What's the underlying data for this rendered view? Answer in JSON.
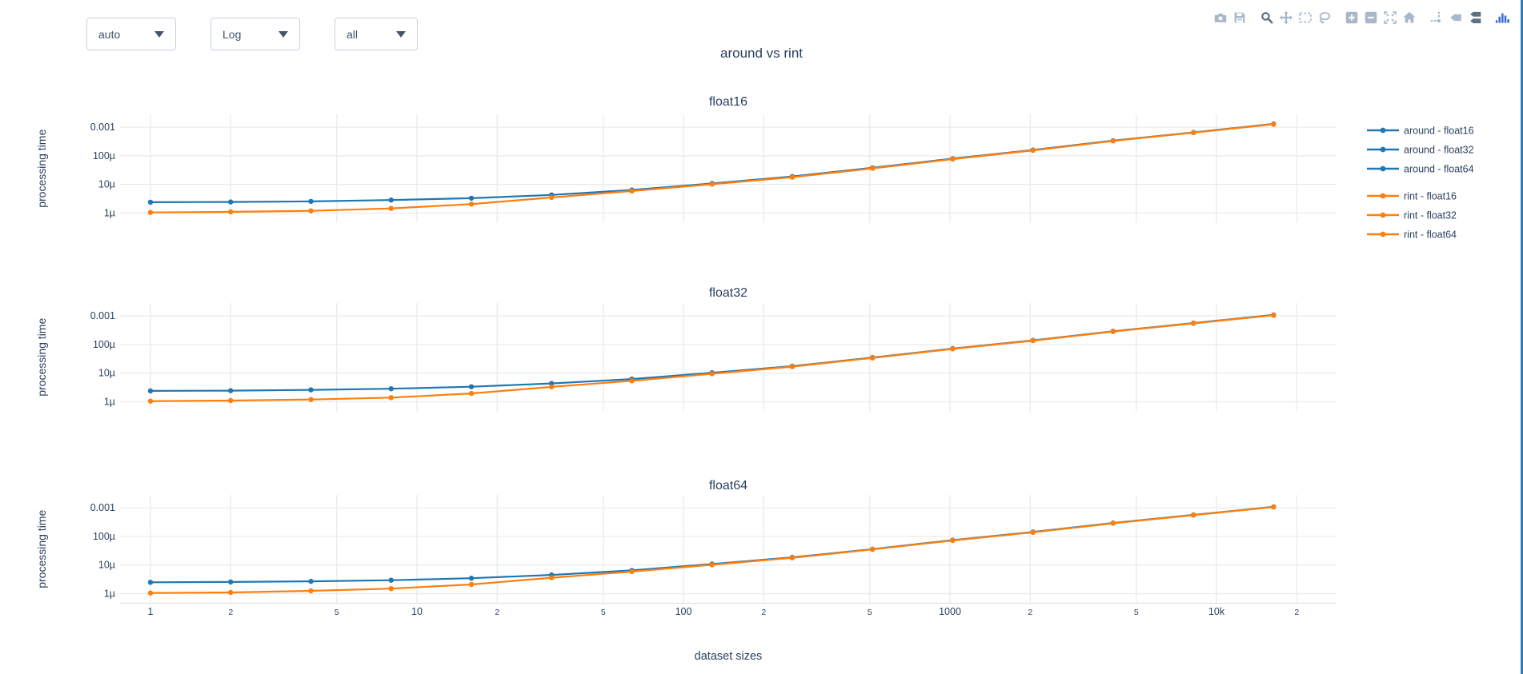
{
  "title": "around vs rint",
  "window": {
    "right_border_color": "#2b7dbe"
  },
  "controls": {
    "dropdowns": [
      {
        "label": "auto"
      },
      {
        "label": "Log"
      },
      {
        "label": "all"
      }
    ]
  },
  "modebar": {
    "buttons": [
      "download-png",
      "save",
      "zoom",
      "pan",
      "box-select",
      "lasso-select",
      "zoom-in",
      "zoom-out",
      "autoscale",
      "reset-axes",
      "toggle-spikelines",
      "hover-closest",
      "hover-compare",
      "plotly-logo"
    ],
    "active_buttons": [
      "zoom",
      "hover-compare"
    ],
    "colors": {
      "inactive": "#a9b7c9",
      "active": "#5d7184",
      "logo": "#3a6ed2"
    }
  },
  "chart_data": {
    "type": "line",
    "title": "around vs rint",
    "x_scale": "log",
    "y_scale": "log",
    "xlabel": "dataset sizes",
    "ylabel": "processing time",
    "x": [
      1,
      2,
      4,
      8,
      16,
      32,
      64,
      128,
      256,
      512,
      1024,
      2048,
      4096,
      8192,
      16384
    ],
    "x_ticks": [
      {
        "label": "1",
        "v": 1,
        "major": true
      },
      {
        "label": "2",
        "v": 2,
        "major": false
      },
      {
        "label": "5",
        "v": 5,
        "major": false
      },
      {
        "label": "10",
        "v": 10,
        "major": true
      },
      {
        "label": "2",
        "v": 20,
        "major": false
      },
      {
        "label": "5",
        "v": 50,
        "major": false
      },
      {
        "label": "100",
        "v": 100,
        "major": true
      },
      {
        "label": "2",
        "v": 200,
        "major": false
      },
      {
        "label": "5",
        "v": 500,
        "major": false
      },
      {
        "label": "1000",
        "v": 1000,
        "major": true
      },
      {
        "label": "2",
        "v": 2000,
        "major": false
      },
      {
        "label": "5",
        "v": 5000,
        "major": false
      },
      {
        "label": "10k",
        "v": 10000,
        "major": true
      },
      {
        "label": "2",
        "v": 20000,
        "major": false
      }
    ],
    "y_ticks": [
      {
        "label": "0.001",
        "us": 1000
      },
      {
        "label": "100µ",
        "us": 100
      },
      {
        "label": "10µ",
        "us": 10
      },
      {
        "label": "1µ",
        "us": 1
      }
    ],
    "grid_x_values": [
      1,
      2,
      5,
      10,
      20,
      50,
      100,
      200,
      500,
      1000,
      2000,
      5000,
      10000,
      20000
    ],
    "subplots": [
      {
        "title": "float16",
        "series": [
          {
            "name": "around - float16",
            "color": "#1f77b4",
            "values_us": [
              2.4,
              2.45,
              2.55,
              2.85,
              3.3,
              4.3,
              6.4,
              10.8,
              19,
              38,
              80,
              160,
              340,
              660,
              1300
            ]
          },
          {
            "name": "rint - float16",
            "color": "#ff7f0e",
            "values_us": [
              1.05,
              1.1,
              1.2,
              1.45,
              2.05,
              3.5,
              5.9,
              10.2,
              18,
              36.5,
              77,
              155,
              330,
              645,
              1270
            ]
          }
        ]
      },
      {
        "title": "float32",
        "series": [
          {
            "name": "around - float32",
            "color": "#1f77b4",
            "values_us": [
              2.4,
              2.45,
              2.6,
              2.85,
              3.35,
              4.35,
              6.2,
              10.3,
              17.5,
              35,
              72,
              140,
              290,
              560,
              1080
            ]
          },
          {
            "name": "rint - float32",
            "color": "#ff7f0e",
            "values_us": [
              1.05,
              1.1,
              1.2,
              1.4,
              1.95,
              3.3,
              5.4,
              9.5,
              16.8,
              34,
              70,
              136,
              283,
              548,
              1050
            ]
          }
        ]
      },
      {
        "title": "float64",
        "series": [
          {
            "name": "around - float64",
            "color": "#1f77b4",
            "values_us": [
              2.5,
              2.55,
              2.7,
              2.95,
              3.45,
              4.5,
              6.5,
              10.8,
              18.5,
              36,
              74,
              143,
              295,
              565,
              1080
            ]
          },
          {
            "name": "rint - float64",
            "color": "#ff7f0e",
            "values_us": [
              1.05,
              1.1,
              1.25,
              1.5,
              2.1,
              3.6,
              5.9,
              10.2,
              17.8,
              35,
              72,
              139,
              288,
              555,
              1060
            ]
          }
        ]
      }
    ],
    "legend": [
      {
        "label": "around - float16",
        "color": "#1f77b4",
        "group": 0
      },
      {
        "label": "around - float32",
        "color": "#1f77b4",
        "group": 0
      },
      {
        "label": "around - float64",
        "color": "#1f77b4",
        "group": 0
      },
      {
        "label": "rint - float16",
        "color": "#ff7f0e",
        "group": 1
      },
      {
        "label": "rint - float32",
        "color": "#ff7f0e",
        "group": 1
      },
      {
        "label": "rint - float64",
        "color": "#ff7f0e",
        "group": 1
      }
    ],
    "colors": {
      "grid": "#ebebeb",
      "axis_line": "#e2e2e2",
      "text": "#2a3f5f"
    }
  }
}
